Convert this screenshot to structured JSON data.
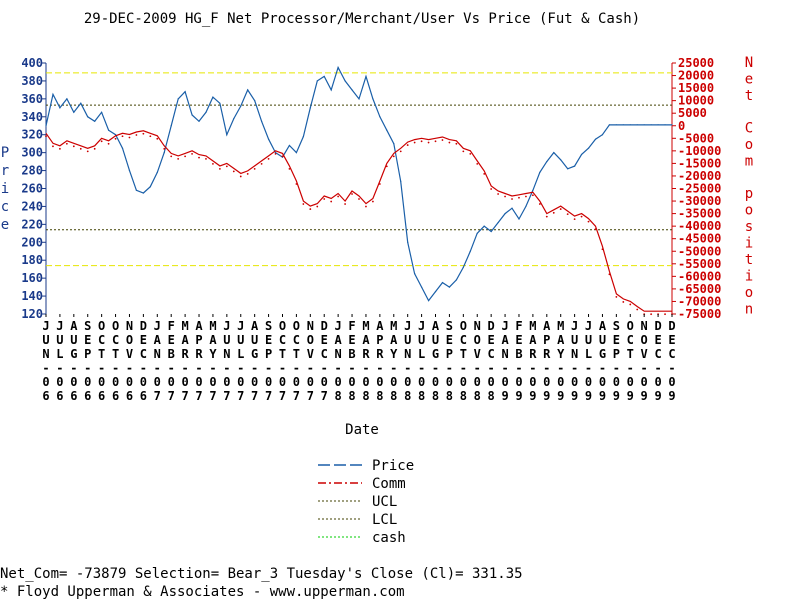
{
  "chart_data": {
    "type": "line",
    "title": "29-DEC-2009 HG_F Net Processor/Merchant/User Vs Price (Fut & Cash)",
    "xlabel": "Date",
    "ylabel_left": "Price",
    "ylabel_right": "Net Com position",
    "yticks_left": [
      400,
      380,
      360,
      340,
      320,
      300,
      280,
      260,
      240,
      220,
      200,
      180,
      160,
      140,
      120
    ],
    "yticks_right": [
      25000,
      20000,
      15000,
      10000,
      5000,
      0,
      -5000,
      -10000,
      -15000,
      -20000,
      -25000,
      -30000,
      -35000,
      -40000,
      -45000,
      -50000,
      -55000,
      -60000,
      -65000,
      -70000,
      -75000
    ],
    "ylim_left": [
      120,
      400
    ],
    "ylim_right": [
      -75000,
      25000
    ],
    "x_tick_labels": [
      [
        "J",
        "U",
        "N",
        "-",
        "0",
        "6"
      ],
      [
        "J",
        "U",
        "L",
        "-",
        "0",
        "6"
      ],
      [
        "A",
        "U",
        "G",
        "-",
        "0",
        "6"
      ],
      [
        "S",
        "E",
        "P",
        "-",
        "0",
        "6"
      ],
      [
        "O",
        "C",
        "T",
        "-",
        "0",
        "6"
      ],
      [
        "O",
        "C",
        "T",
        "-",
        "0",
        "6"
      ],
      [
        "N",
        "O",
        "V",
        "-",
        "0",
        "6"
      ],
      [
        "D",
        "E",
        "C",
        "-",
        "0",
        "6"
      ],
      [
        "J",
        "A",
        "N",
        "-",
        "0",
        "7"
      ],
      [
        "F",
        "E",
        "B",
        "-",
        "0",
        "7"
      ],
      [
        "M",
        "A",
        "R",
        "-",
        "0",
        "7"
      ],
      [
        "A",
        "P",
        "R",
        "-",
        "0",
        "7"
      ],
      [
        "M",
        "A",
        "Y",
        "-",
        "0",
        "7"
      ],
      [
        "J",
        "U",
        "N",
        "-",
        "0",
        "7"
      ],
      [
        "J",
        "U",
        "L",
        "-",
        "0",
        "7"
      ],
      [
        "A",
        "U",
        "G",
        "-",
        "0",
        "7"
      ],
      [
        "S",
        "E",
        "P",
        "-",
        "0",
        "7"
      ],
      [
        "O",
        "C",
        "T",
        "-",
        "0",
        "7"
      ],
      [
        "O",
        "C",
        "T",
        "-",
        "0",
        "7"
      ],
      [
        "N",
        "O",
        "V",
        "-",
        "0",
        "7"
      ],
      [
        "D",
        "E",
        "C",
        "-",
        "0",
        "7"
      ],
      [
        "J",
        "A",
        "N",
        "-",
        "0",
        "8"
      ],
      [
        "F",
        "E",
        "B",
        "-",
        "0",
        "8"
      ],
      [
        "M",
        "A",
        "R",
        "-",
        "0",
        "8"
      ],
      [
        "A",
        "P",
        "R",
        "-",
        "0",
        "8"
      ],
      [
        "M",
        "A",
        "Y",
        "-",
        "0",
        "8"
      ],
      [
        "J",
        "U",
        "N",
        "-",
        "0",
        "8"
      ],
      [
        "J",
        "U",
        "L",
        "-",
        "0",
        "8"
      ],
      [
        "A",
        "U",
        "G",
        "-",
        "0",
        "8"
      ],
      [
        "S",
        "E",
        "P",
        "-",
        "0",
        "8"
      ],
      [
        "O",
        "C",
        "T",
        "-",
        "0",
        "8"
      ],
      [
        "N",
        "O",
        "V",
        "-",
        "0",
        "8"
      ],
      [
        "D",
        "E",
        "C",
        "-",
        "0",
        "8"
      ],
      [
        "J",
        "A",
        "N",
        "-",
        "0",
        "9"
      ],
      [
        "F",
        "E",
        "B",
        "-",
        "0",
        "9"
      ],
      [
        "M",
        "A",
        "R",
        "-",
        "0",
        "9"
      ],
      [
        "A",
        "P",
        "R",
        "-",
        "0",
        "9"
      ],
      [
        "M",
        "A",
        "Y",
        "-",
        "0",
        "9"
      ],
      [
        "J",
        "U",
        "N",
        "-",
        "0",
        "9"
      ],
      [
        "J",
        "U",
        "L",
        "-",
        "0",
        "9"
      ],
      [
        "A",
        "U",
        "G",
        "-",
        "0",
        "9"
      ],
      [
        "S",
        "E",
        "P",
        "-",
        "0",
        "9"
      ],
      [
        "O",
        "C",
        "T",
        "-",
        "0",
        "9"
      ],
      [
        "N",
        "O",
        "V",
        "-",
        "0",
        "9"
      ],
      [
        "D",
        "E",
        "C",
        "-",
        "0",
        "9"
      ],
      [
        "D",
        "E",
        "C",
        "-",
        "0",
        "9"
      ]
    ],
    "legend": [
      "Price",
      "Comm",
      "UCL",
      "LCL",
      "cash"
    ],
    "legend_placement": "bottom-center",
    "ucl_price": 353,
    "lcl_price": 214,
    "cash_upper_price": 389,
    "cash_lower_price": 174,
    "series": [
      {
        "name": "Price",
        "axis": "left",
        "color": "#1a5fa8",
        "x": [
          0,
          0.5,
          1,
          1.5,
          2,
          2.5,
          3,
          3.5,
          4,
          4.5,
          5,
          5.5,
          6,
          6.5,
          7,
          7.5,
          8,
          8.5,
          9,
          9.5,
          10,
          10.5,
          11,
          11.5,
          12,
          12.5,
          13,
          13.5,
          14,
          14.5,
          15,
          15.5,
          16,
          16.5,
          17,
          17.5,
          18,
          18.5,
          19,
          19.5,
          20,
          20.5,
          21,
          21.5,
          22,
          22.5,
          23,
          23.5,
          24,
          24.5,
          25,
          25.5,
          26,
          26.5,
          27,
          27.5,
          28,
          28.5,
          29,
          29.5,
          30,
          30.5,
          31,
          31.5,
          32,
          32.5,
          33,
          33.5,
          34,
          34.5,
          35,
          35.5,
          36,
          36.5,
          37,
          37.5,
          38,
          38.5,
          39,
          39.5,
          40,
          40.5,
          41,
          41.5,
          42,
          42.5,
          43,
          43.5,
          44,
          44.5,
          45
        ],
        "y": [
          330,
          365,
          350,
          360,
          345,
          355,
          340,
          335,
          345,
          325,
          320,
          305,
          280,
          258,
          255,
          262,
          278,
          300,
          330,
          360,
          368,
          342,
          335,
          345,
          362,
          355,
          320,
          338,
          352,
          370,
          358,
          335,
          315,
          300,
          295,
          308,
          300,
          318,
          350,
          380,
          385,
          370,
          395,
          380,
          370,
          360,
          385,
          360,
          340,
          325,
          310,
          268,
          200,
          165,
          150,
          135,
          145,
          155,
          150,
          158,
          172,
          190,
          210,
          218,
          212,
          222,
          232,
          238,
          226,
          240,
          258,
          278,
          290,
          300,
          292,
          282,
          285,
          298,
          305,
          315,
          320,
          331,
          331,
          331,
          331,
          331,
          331,
          331,
          331,
          331,
          331
        ]
      },
      {
        "name": "Comm",
        "axis": "right",
        "color": "#cc0000",
        "x": [
          0,
          0.5,
          1,
          1.5,
          2,
          2.5,
          3,
          3.5,
          4,
          4.5,
          5,
          5.5,
          6,
          6.5,
          7,
          7.5,
          8,
          8.5,
          9,
          9.5,
          10,
          10.5,
          11,
          11.5,
          12,
          12.5,
          13,
          13.5,
          14,
          14.5,
          15,
          15.5,
          16,
          16.5,
          17,
          17.5,
          18,
          18.5,
          19,
          19.5,
          20,
          20.5,
          21,
          21.5,
          22,
          22.5,
          23,
          23.5,
          24,
          24.5,
          25,
          25.5,
          26,
          26.5,
          27,
          27.5,
          28,
          28.5,
          29,
          29.5,
          30,
          30.5,
          31,
          31.5,
          32,
          32.5,
          33,
          33.5,
          34,
          34.5,
          35,
          35.5,
          36,
          36.5,
          37,
          37.5,
          38,
          38.5,
          39,
          39.5,
          40,
          40.5,
          41,
          41.5,
          42,
          42.5,
          43,
          43.5,
          44,
          44.5,
          45
        ],
        "y": [
          -3000,
          -7000,
          -8000,
          -6000,
          -7000,
          -8000,
          -9000,
          -8000,
          -5000,
          -6000,
          -4000,
          -3000,
          -3500,
          -2500,
          -2000,
          -3000,
          -4000,
          -8000,
          -11000,
          -12000,
          -11000,
          -10000,
          -11500,
          -12000,
          -14000,
          -16000,
          -15000,
          -17000,
          -19000,
          -18000,
          -16000,
          -14000,
          -12000,
          -10000,
          -11000,
          -16000,
          -22000,
          -30000,
          -32000,
          -31000,
          -28000,
          -29000,
          -27000,
          -30000,
          -26000,
          -28000,
          -31000,
          -29000,
          -22000,
          -15000,
          -11000,
          -9000,
          -6500,
          -5500,
          -5000,
          -5500,
          -5000,
          -4500,
          -5500,
          -6000,
          -9000,
          -10000,
          -14000,
          -18000,
          -24000,
          -26000,
          -27000,
          -28000,
          -27500,
          -27000,
          -26500,
          -30000,
          -35000,
          -33500,
          -32000,
          -34000,
          -36000,
          -35000,
          -37000,
          -40000,
          -48000,
          -58000,
          -67000,
          -69000,
          -70000,
          -72000,
          -73879,
          -73879,
          -73879,
          -73879,
          -73879
        ]
      }
    ]
  },
  "legend_labels": {
    "price": "Price",
    "comm": "Comm",
    "ucl": "UCL",
    "lcl": "LCL",
    "cash": "cash"
  },
  "footer": {
    "line1": "Net_Com= -73879 Selection= Bear_3 Tuesday's Close (Cl)= 331.35",
    "line2": "* Floyd Upperman & Associates - www.upperman.com"
  },
  "colors": {
    "price": "#1a5fa8",
    "comm": "#cc0000",
    "ucl": "#404000",
    "lcl": "#404000",
    "cash": "#e6e600",
    "left_axis": "#1a3a8a",
    "right_axis": "#cc0000"
  }
}
